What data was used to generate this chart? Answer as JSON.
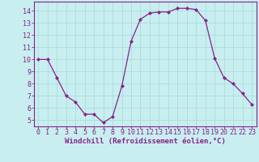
{
  "x": [
    0,
    1,
    2,
    3,
    4,
    5,
    6,
    7,
    8,
    9,
    10,
    11,
    12,
    13,
    14,
    15,
    16,
    17,
    18,
    19,
    20,
    21,
    22,
    23
  ],
  "y": [
    10.0,
    10.0,
    8.5,
    7.0,
    6.5,
    5.5,
    5.5,
    4.8,
    5.3,
    7.8,
    11.5,
    13.3,
    13.8,
    13.9,
    13.9,
    14.2,
    14.2,
    14.1,
    13.2,
    10.1,
    8.5,
    8.0,
    7.2,
    6.3
  ],
  "line_color": "#882288",
  "marker": "D",
  "marker_size": 2.0,
  "bg_color": "#c8eef0",
  "grid_color": "#aadddd",
  "xlabel": "Windchill (Refroidissement éolien,°C)",
  "xlabel_color": "#882288",
  "tick_color": "#882288",
  "ylim": [
    4.5,
    14.75
  ],
  "xlim": [
    -0.5,
    23.5
  ],
  "yticks": [
    5,
    6,
    7,
    8,
    9,
    10,
    11,
    12,
    13,
    14
  ],
  "xticks": [
    0,
    1,
    2,
    3,
    4,
    5,
    6,
    7,
    8,
    9,
    10,
    11,
    12,
    13,
    14,
    15,
    16,
    17,
    18,
    19,
    20,
    21,
    22,
    23
  ],
  "spine_color": "#882288",
  "font_size": 6.0,
  "label_font_size": 6.5
}
